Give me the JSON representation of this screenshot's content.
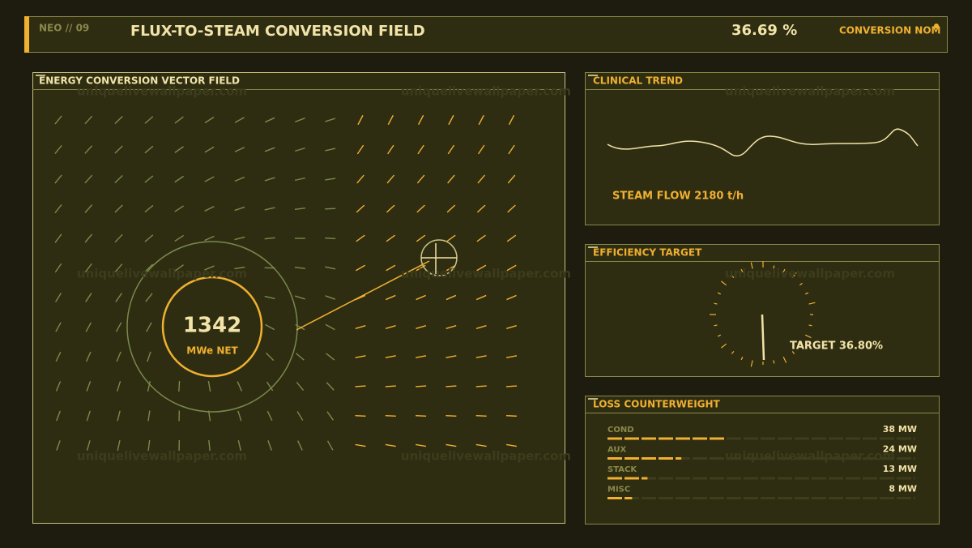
{
  "header": {
    "code": "NEO // 09",
    "title": "FLUX-TO-STEAM CONVERSION FIELD",
    "readout": "36.69 %",
    "status": "CONVERSION NOM"
  },
  "watermark": "uniquelivewallpaper.com",
  "vector_panel": {
    "title": "ENERGY CONVERSION VECTOR FIELD",
    "value": "1342",
    "unit": "MWe NET"
  },
  "trend_panel": {
    "title": "CLINICAL TREND",
    "label": "STEAM FLOW 2180 t/h"
  },
  "target_panel": {
    "title": "EFFICIENCY TARGET",
    "label": "TARGET 36.80%"
  },
  "loss_panel": {
    "title": "LOSS COUNTERWEIGHT",
    "xlim": [
      0,
      100
    ],
    "items": [
      {
        "name": "COND",
        "value": 38,
        "value_label": "38 MW"
      },
      {
        "name": "AUX",
        "value": 24,
        "value_label": "24 MW"
      },
      {
        "name": "STACK",
        "value": 13,
        "value_label": "13 MW"
      },
      {
        "name": "MISC",
        "value": 8,
        "value_label": "8 MW"
      }
    ]
  }
}
